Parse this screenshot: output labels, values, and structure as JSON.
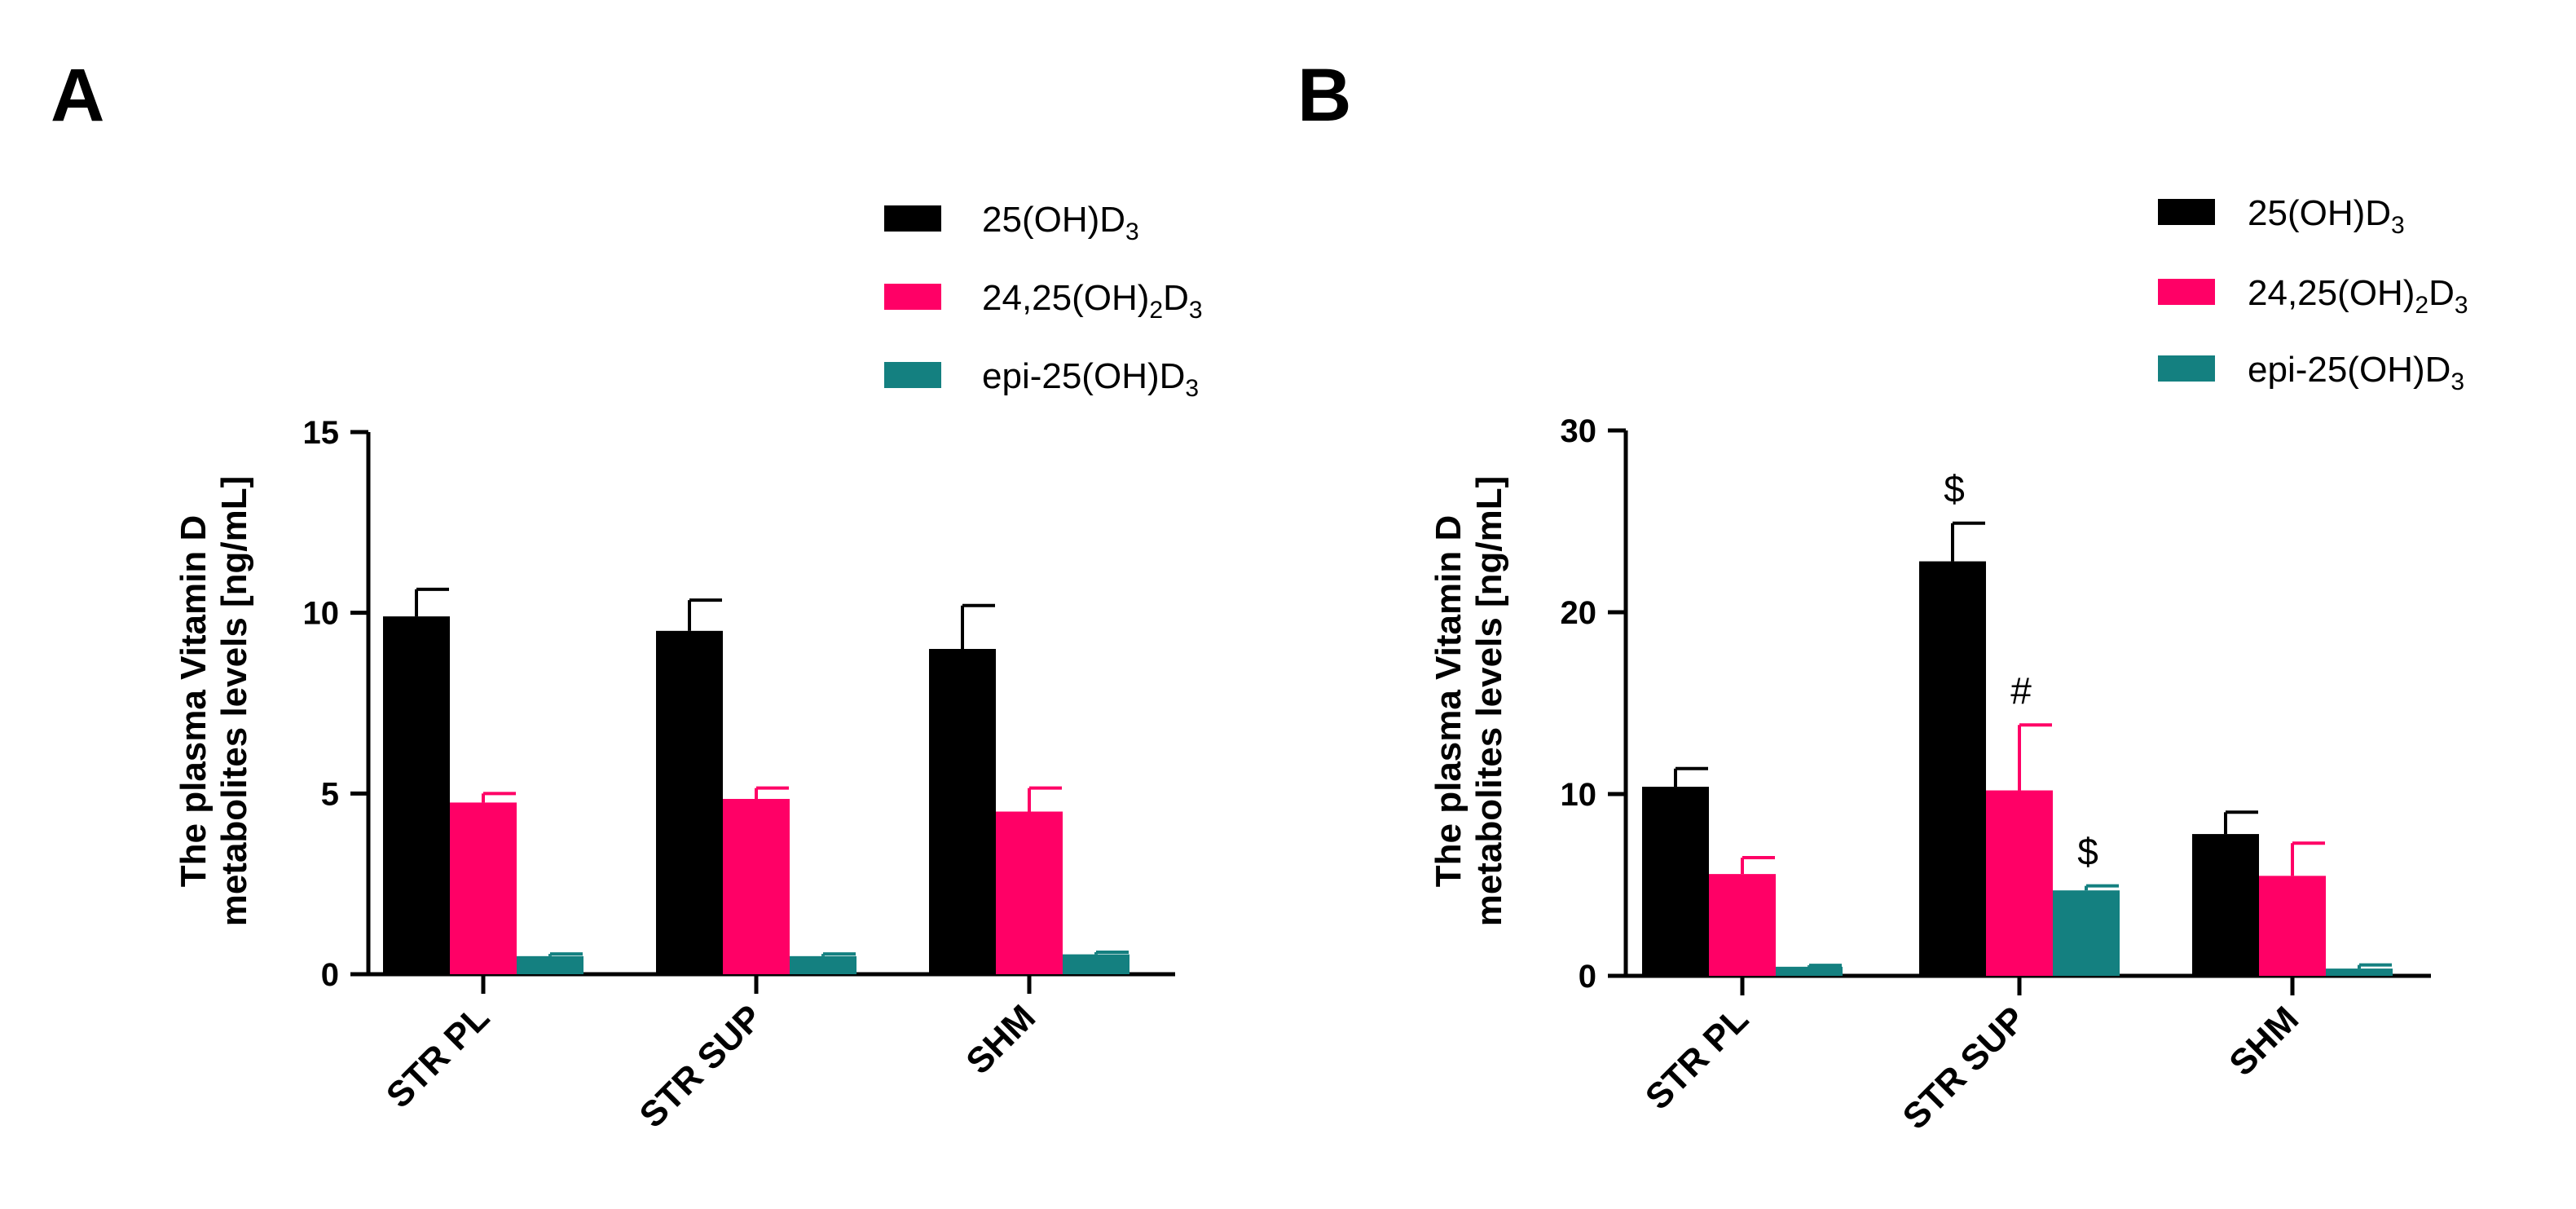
{
  "colors": {
    "series": [
      "#000000",
      "#ff0066",
      "#148080"
    ],
    "axis": "#000000"
  },
  "chart_data": [
    {
      "panel": "A",
      "type": "bar",
      "ylabel_line1": "The plasma Vitamin D",
      "ylabel_line2": "metabolites levels  [ng/mL]",
      "ylim": [
        0,
        15
      ],
      "yticks": [
        0,
        5,
        10,
        15
      ],
      "categories": [
        "STR PL",
        "STR SUP",
        "SHM"
      ],
      "legend_position": "top-right",
      "series": [
        {
          "name": "25(OH)D",
          "sub": "3",
          "subscript_after": "D",
          "values": [
            9.9,
            9.5,
            9.0
          ],
          "errors": [
            0.75,
            0.85,
            1.2
          ],
          "annotations": [
            "",
            "",
            ""
          ]
        },
        {
          "name": "24,25(OH)D",
          "sub": "3",
          "subscript_after": "D",
          "mid_sub": "2",
          "values": [
            4.75,
            4.85,
            4.5
          ],
          "errors": [
            0.25,
            0.3,
            0.65
          ],
          "annotations": [
            "",
            "",
            ""
          ]
        },
        {
          "name": "epi-25(OH)D",
          "sub": "3",
          "subscript_after": "D",
          "values": [
            0.5,
            0.5,
            0.55
          ],
          "errors": [
            0.06,
            0.06,
            0.06
          ],
          "annotations": [
            "",
            "",
            ""
          ]
        }
      ]
    },
    {
      "panel": "B",
      "type": "bar",
      "ylabel_line1": "The plasma Vitamin D",
      "ylabel_line2": "metabolites levels  [ng/mL]",
      "ylim": [
        0,
        30
      ],
      "yticks": [
        0,
        10,
        20,
        30
      ],
      "categories": [
        "STR PL",
        "STR SUP",
        "SHM"
      ],
      "legend_position": "top-right",
      "series": [
        {
          "name": "25(OH)D",
          "sub": "3",
          "values": [
            10.4,
            22.8,
            7.8
          ],
          "errors": [
            1.0,
            2.1,
            1.2
          ],
          "annotations": [
            "",
            "$",
            ""
          ]
        },
        {
          "name": "24,25(OH)D",
          "sub": "3",
          "mid_sub": "2",
          "values": [
            5.6,
            10.2,
            5.5
          ],
          "errors": [
            0.9,
            3.6,
            1.8
          ],
          "annotations": [
            "",
            "#",
            ""
          ]
        },
        {
          "name": "epi-25(OH)D",
          "sub": "3",
          "values": [
            0.5,
            4.7,
            0.4
          ],
          "errors": [
            0.08,
            0.25,
            0.2
          ],
          "annotations": [
            "",
            "$",
            ""
          ]
        }
      ]
    }
  ],
  "legend_labels": {
    "s0_main": "25(OH)D",
    "s1_pre": "24,25(OH)",
    "s1_mid": "2",
    "s1_post": "D",
    "s2_main": "epi-25(OH)D",
    "sub3": "3"
  }
}
